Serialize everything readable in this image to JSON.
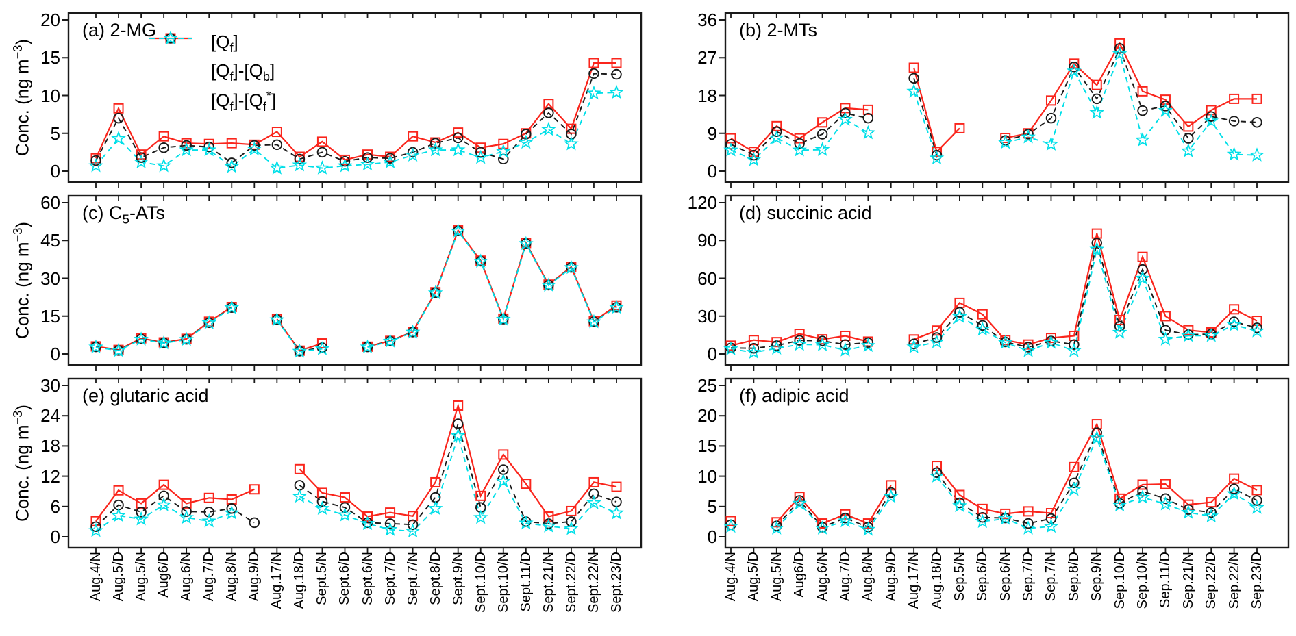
{
  "figure_name": "filter-sampling-artifact-comparison-figure",
  "y_axis_title_html": "Conc. (ng m<sup>−3</sup>)",
  "chart_data": {
    "type": "line",
    "grid": false,
    "legend_position": "inside-top-left-of-panel-a",
    "legend": [
      {
        "series": "qf",
        "label_html": "[Q<sub>f</sub>]"
      },
      {
        "series": "qf_qb",
        "label_html": "[Q<sub>f</sub>]-[Q<sub>b</sub>]"
      },
      {
        "series": "qf_qfs",
        "label_html": "[Q<sub>f</sub>]-[Q<sub>f</sub><sup>*</sup>]"
      }
    ],
    "series_styles": {
      "qf": {
        "color": "#fa251c",
        "line": "solid",
        "marker": "square",
        "name": "[Qf]"
      },
      "qf_qb": {
        "color": "#1a1a1a",
        "line": "dashed",
        "marker": "circle",
        "name": "[Qf]-[Qb]"
      },
      "qf_qfs": {
        "color": "#00dfe8",
        "line": "dashed",
        "marker": "star",
        "name": "[Qf]-[Qf*]"
      }
    },
    "x_categories": {
      "left": [
        "Aug.4/N",
        "Aug.5/D",
        "Aug.5/N",
        "Aug6/D",
        "Aug.6/N",
        "Aug.7/D",
        "Aug.8/N",
        "Aug.9/D",
        "Aug.17/N",
        "Aug.18/D",
        "Sept.5/N",
        "Sept.6/D",
        "Sept.6/N",
        "Sept.7/D",
        "Sept.7/N",
        "Sept.8/D",
        "Sept.9/N",
        "Sept.10/D",
        "Sept.10/N",
        "Sept.11/D",
        "Sept.21/N",
        "Sept.22/D",
        "Sept.22/N",
        "Sept.23/D"
      ],
      "right": [
        "Aug.4/N",
        "Aug.5/D",
        "Aug.5/N",
        "Aug6/D",
        "Aug.6/N",
        "Aug.7/D",
        "Aug.8/N",
        "Aug.9/D",
        "Aug.17/N",
        "Aug.18/D",
        "Sep.5/N",
        "Sep.6/D",
        "Sep.6/N",
        "Sep.7/D",
        "Sep.7/N",
        "Sep.8/D",
        "Sep.9/N",
        "Sep.10/D",
        "Sep.10/N",
        "Sep.11/D",
        "Sep.21/N",
        "Sep.22/D",
        "Sep.22/N",
        "Sep.23/D"
      ]
    },
    "panels": [
      {
        "id": "a",
        "title_html": "(a) 2-MG",
        "col": "left",
        "row": 0,
        "ylim": [
          0,
          20
        ],
        "yticks": [
          0,
          5,
          10,
          15,
          20
        ],
        "series": {
          "qf": [
            1.7,
            8.3,
            2.2,
            4.6,
            3.7,
            3.6,
            3.7,
            3.5,
            5.2,
            1.9,
            3.9,
            1.5,
            2.2,
            1.9,
            4.6,
            3.8,
            5.1,
            3.1,
            3.6,
            5.0,
            8.9,
            5.6,
            14.3,
            14.3
          ],
          "qf_qb": [
            1.4,
            7.0,
            1.8,
            3.1,
            3.4,
            3.2,
            1.1,
            3.4,
            3.5,
            1.6,
            2.5,
            1.3,
            1.8,
            1.7,
            2.5,
            3.7,
            4.4,
            2.5,
            1.6,
            4.9,
            7.7,
            4.9,
            12.9,
            12.8
          ],
          "qf_qfs": [
            0.7,
            4.3,
            1.2,
            0.7,
            2.8,
            2.8,
            0.6,
            2.9,
            0.4,
            0.8,
            0.4,
            0.7,
            0.9,
            1.2,
            2.1,
            2.8,
            2.8,
            1.8,
            2.6,
            3.8,
            5.5,
            3.6,
            10.3,
            10.4
          ]
        }
      },
      {
        "id": "b",
        "title_html": "(b) 2-MTs",
        "col": "right",
        "row": 0,
        "ylim": [
          0,
          36
        ],
        "yticks": [
          0,
          9,
          18,
          27,
          36
        ],
        "series": {
          "qf": [
            7.8,
            4.6,
            10.7,
            7.8,
            11.6,
            15.0,
            14.6,
            null,
            24.6,
            4.6,
            10.2,
            null,
            7.9,
            9.0,
            16.8,
            25.6,
            20.5,
            30.4,
            19.0,
            17.0,
            10.6,
            14.5,
            17.2,
            17.2
          ],
          "qf_qb": [
            6.4,
            3.8,
            9.4,
            6.6,
            8.8,
            13.8,
            12.6,
            null,
            22.1,
            3.8,
            null,
            null,
            7.3,
            8.8,
            12.6,
            24.8,
            17.2,
            29.2,
            14.4,
            15.5,
            7.8,
            13.0,
            11.9,
            11.6
          ],
          "qf_qfs": [
            5.0,
            2.7,
            7.9,
            5.0,
            5.1,
            12.3,
            9.1,
            null,
            19.0,
            3.1,
            null,
            null,
            6.8,
            8.1,
            6.4,
            23.8,
            13.9,
            27.9,
            7.4,
            14.4,
            4.8,
            11.9,
            4.0,
            3.8
          ]
        }
      },
      {
        "id": "c",
        "title_html": "(c) C<sub>5</sub>-ATs",
        "col": "left",
        "row": 1,
        "ylim": [
          0,
          60
        ],
        "yticks": [
          0,
          15,
          30,
          45,
          60
        ],
        "series": {
          "qf": [
            3.0,
            1.6,
            6.2,
            4.6,
            6.0,
            12.8,
            18.6,
            null,
            13.8,
            1.3,
            4.2,
            null,
            2.9,
            5.2,
            8.8,
            24.5,
            49.0,
            37.0,
            14.0,
            44.0,
            27.5,
            34.5,
            13.0,
            19.2
          ],
          "qf_qb": [
            2.8,
            1.4,
            5.9,
            4.4,
            5.8,
            12.4,
            18.4,
            null,
            13.6,
            1.1,
            2.5,
            null,
            2.8,
            5.1,
            8.7,
            24.3,
            48.8,
            36.8,
            13.8,
            43.8,
            27.3,
            34.3,
            12.8,
            18.5
          ],
          "qf_qfs": [
            2.7,
            1.3,
            5.8,
            4.3,
            5.7,
            12.3,
            18.3,
            null,
            13.5,
            1.0,
            2.0,
            null,
            2.7,
            5.0,
            8.6,
            24.2,
            48.7,
            36.7,
            13.7,
            43.7,
            27.2,
            34.2,
            12.7,
            18.4
          ]
        }
      },
      {
        "id": "d",
        "title_html": "(d) succinic acid",
        "col": "right",
        "row": 1,
        "ylim": [
          0,
          120
        ],
        "yticks": [
          0,
          30,
          60,
          90,
          120
        ],
        "series": {
          "qf": [
            6.6,
            11.0,
            9.4,
            16.0,
            11.6,
            14.4,
            9.8,
            null,
            11.5,
            18.6,
            40.5,
            31.4,
            11.0,
            7.5,
            12.7,
            14.4,
            95.5,
            26.9,
            77.0,
            29.9,
            18.9,
            17.1,
            35.4,
            26.3
          ],
          "qf_qb": [
            4.8,
            4.5,
            6.6,
            10.8,
            10.3,
            7.5,
            9.0,
            null,
            8.0,
            13.0,
            33.0,
            22.6,
            9.5,
            5.4,
            10.3,
            7.5,
            88.0,
            21.9,
            67.0,
            18.9,
            15.3,
            15.8,
            25.5,
            20.7
          ],
          "qf_qfs": [
            3.9,
            1.2,
            4.5,
            7.5,
            7.2,
            3.0,
            6.6,
            null,
            5.5,
            9.5,
            29.5,
            19.5,
            9.0,
            2.5,
            9.0,
            2.5,
            83.0,
            17.1,
            60.0,
            11.6,
            14.5,
            14.5,
            23.0,
            18.2
          ]
        }
      },
      {
        "id": "e",
        "title_html": "(e) glutaric acid",
        "col": "left",
        "row": 2,
        "ylim": [
          0,
          30
        ],
        "yticks": [
          0,
          6,
          12,
          18,
          24,
          30
        ],
        "series": {
          "qf": [
            3.1,
            9.2,
            6.6,
            10.3,
            6.6,
            7.7,
            7.4,
            9.4,
            null,
            13.4,
            8.7,
            7.8,
            4.0,
            4.8,
            4.1,
            10.8,
            26.0,
            8.1,
            16.3,
            10.5,
            4.0,
            5.1,
            10.8,
            9.9
          ],
          "qf_qb": [
            2.0,
            6.3,
            4.9,
            8.1,
            5.0,
            4.9,
            5.6,
            2.8,
            null,
            10.2,
            7.0,
            5.8,
            2.8,
            2.6,
            2.4,
            7.8,
            22.4,
            5.8,
            13.3,
            3.0,
            2.6,
            3.0,
            8.5,
            6.9
          ],
          "qf_qfs": [
            1.2,
            4.2,
            3.5,
            6.3,
            3.8,
            3.1,
            4.7,
            null,
            null,
            8.0,
            5.6,
            4.3,
            2.6,
            1.4,
            1.1,
            5.6,
            20.0,
            3.8,
            11.0,
            2.7,
            2.1,
            1.6,
            6.7,
            4.7
          ]
        }
      },
      {
        "id": "f",
        "title_html": "(f) adipic acid",
        "col": "right",
        "row": 2,
        "ylim": [
          0,
          25
        ],
        "yticks": [
          0,
          5,
          10,
          15,
          20,
          25
        ],
        "series": {
          "qf": [
            2.6,
            null,
            2.4,
            6.6,
            2.2,
            3.7,
            2.2,
            8.5,
            null,
            11.7,
            6.9,
            4.6,
            3.8,
            4.2,
            3.9,
            11.5,
            18.6,
            6.3,
            8.6,
            8.7,
            5.3,
            5.7,
            9.6,
            7.7
          ],
          "qf_qb": [
            2.0,
            null,
            1.8,
            6.0,
            1.6,
            3.1,
            1.6,
            7.3,
            null,
            10.6,
            5.6,
            3.2,
            3.1,
            2.2,
            3.0,
            8.9,
            17.2,
            5.5,
            7.5,
            6.3,
            4.5,
            4.0,
            7.9,
            6.0
          ],
          "qf_qfs": [
            1.7,
            null,
            1.4,
            5.5,
            1.4,
            2.6,
            1.2,
            6.6,
            null,
            10.0,
            5.1,
            2.5,
            3.0,
            1.4,
            1.7,
            7.8,
            16.3,
            5.2,
            6.5,
            5.4,
            4.0,
            3.4,
            7.1,
            4.8
          ]
        }
      }
    ]
  }
}
